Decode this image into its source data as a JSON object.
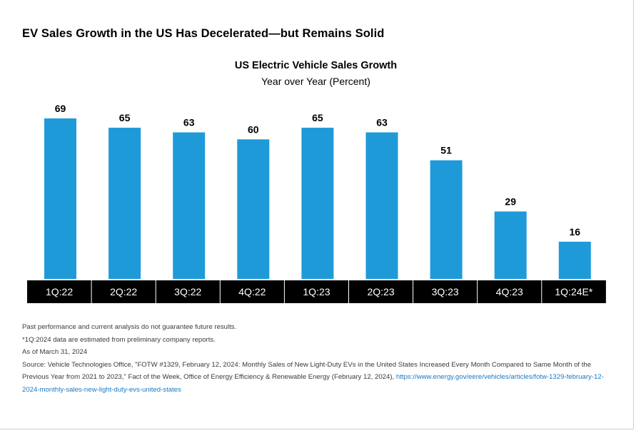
{
  "headline": "EV Sales Growth in the US Has Decelerated—but Remains Solid",
  "chart_data": {
    "type": "bar",
    "title": "US Electric Vehicle Sales Growth",
    "subtitle": "Year over Year (Percent)",
    "categories": [
      "1Q:22",
      "2Q:22",
      "3Q:22",
      "4Q:22",
      "1Q:23",
      "2Q:23",
      "3Q:23",
      "4Q:23",
      "1Q:24E*"
    ],
    "values": [
      69,
      65,
      63,
      60,
      65,
      63,
      51,
      29,
      16
    ],
    "ylim": [
      0,
      69
    ],
    "grid": false,
    "legend": "none",
    "bar_color": "#1f9ad9",
    "label_bar_color": "#000000",
    "label_text_color": "#ffffff"
  },
  "notes": {
    "disclaimer": "Past performance and current analysis do not guarantee future results.",
    "estimate_note": "*1Q:2024 data are estimated from preliminary company reports.",
    "as_of": "As of March 31, 2024",
    "source_text": "Source: Vehicle Technologies Office, \"FOTW #1329, February 12, 2024: Monthly Sales of New Light-Duty EVs in the United States Increased Every Month Compared to Same Month of the Previous Year from 2021 to 2023,\" Fact of the Week, Office of Energy Efficiency & Renewable Energy (February 12, 2024),",
    "source_link": "https://www.energy.gov/eere/vehicles/articles/fotw-1329-february-12-2024-monthly-sales-new-light-duty-evs-united-states"
  },
  "colors": {
    "link": "#1a78c2",
    "note_text": "#3a3a3a"
  }
}
